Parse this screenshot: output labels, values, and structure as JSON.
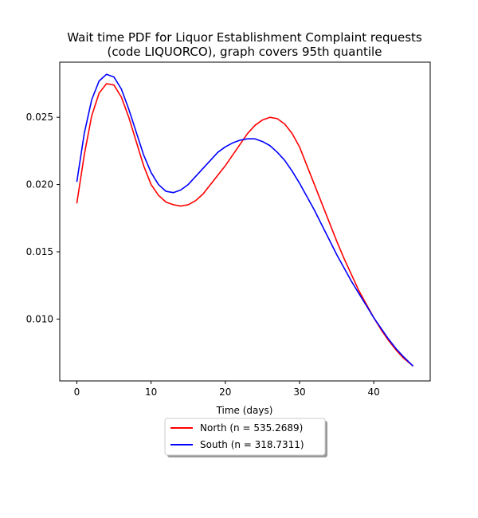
{
  "chart_data": {
    "type": "line",
    "title_lines": [
      "Wait time PDF for Liquor Establishment Complaint  requests",
      "(code LIQUORCO), graph covers 95th quantile"
    ],
    "xlabel": "Time (days)",
    "ylabel": "",
    "xlim": [
      -2.3,
      47.6
    ],
    "ylim": [
      0.0054,
      0.0291
    ],
    "x_ticks": [
      0,
      10,
      20,
      30,
      40
    ],
    "y_ticks": [
      0.01,
      0.015,
      0.02,
      0.025
    ],
    "x_tick_labels": [
      "0",
      "10",
      "20",
      "30",
      "40"
    ],
    "y_tick_labels": [
      "0.010",
      "0.015",
      "0.020",
      "0.025"
    ],
    "grid": false,
    "legend_position": "below-center",
    "series": [
      {
        "name": "North (n = 535.2689)",
        "color": "#ff0000",
        "points": [
          [
            0,
            0.0186
          ],
          [
            1,
            0.0222
          ],
          [
            2,
            0.0251
          ],
          [
            3,
            0.0268
          ],
          [
            4,
            0.0275
          ],
          [
            5,
            0.0274
          ],
          [
            6,
            0.0265
          ],
          [
            7,
            0.025
          ],
          [
            8,
            0.0232
          ],
          [
            9,
            0.0214
          ],
          [
            10,
            0.02
          ],
          [
            11,
            0.0192
          ],
          [
            12,
            0.0187
          ],
          [
            13,
            0.0185
          ],
          [
            14,
            0.0184
          ],
          [
            15,
            0.0185
          ],
          [
            16,
            0.0188
          ],
          [
            17,
            0.0193
          ],
          [
            18,
            0.02
          ],
          [
            19,
            0.0207
          ],
          [
            20,
            0.0214
          ],
          [
            21,
            0.0222
          ],
          [
            22,
            0.023
          ],
          [
            23,
            0.0238
          ],
          [
            24,
            0.0244
          ],
          [
            25,
            0.0248
          ],
          [
            26,
            0.025
          ],
          [
            27,
            0.0249
          ],
          [
            28,
            0.0245
          ],
          [
            29,
            0.0238
          ],
          [
            30,
            0.0228
          ],
          [
            31,
            0.0214
          ],
          [
            32,
            0.02
          ],
          [
            33,
            0.0186
          ],
          [
            34,
            0.0172
          ],
          [
            35,
            0.0158
          ],
          [
            36,
            0.0145
          ],
          [
            37,
            0.0133
          ],
          [
            38,
            0.0121
          ],
          [
            39,
            0.0111
          ],
          [
            40,
            0.0101
          ],
          [
            41,
            0.0092
          ],
          [
            42,
            0.0084
          ],
          [
            43,
            0.0077
          ],
          [
            44,
            0.0071
          ],
          [
            45.3,
            0.0065
          ]
        ]
      },
      {
        "name": "South (n = 318.7311)",
        "color": "#0000ff",
        "points": [
          [
            0,
            0.0202
          ],
          [
            1,
            0.0238
          ],
          [
            2,
            0.0263
          ],
          [
            3,
            0.0277
          ],
          [
            4,
            0.0282
          ],
          [
            5,
            0.028
          ],
          [
            6,
            0.0271
          ],
          [
            7,
            0.0256
          ],
          [
            8,
            0.0239
          ],
          [
            9,
            0.0222
          ],
          [
            10,
            0.0209
          ],
          [
            11,
            0.02
          ],
          [
            12,
            0.0195
          ],
          [
            13,
            0.0194
          ],
          [
            14,
            0.0196
          ],
          [
            15,
            0.02
          ],
          [
            16,
            0.0206
          ],
          [
            17,
            0.0212
          ],
          [
            18,
            0.0218
          ],
          [
            19,
            0.0224
          ],
          [
            20,
            0.0228
          ],
          [
            21,
            0.0231
          ],
          [
            22,
            0.0233
          ],
          [
            23,
            0.0234
          ],
          [
            24,
            0.0234
          ],
          [
            25,
            0.0232
          ],
          [
            26,
            0.0229
          ],
          [
            27,
            0.0224
          ],
          [
            28,
            0.0218
          ],
          [
            29,
            0.021
          ],
          [
            30,
            0.0201
          ],
          [
            31,
            0.0191
          ],
          [
            32,
            0.0181
          ],
          [
            33,
            0.017
          ],
          [
            34,
            0.0159
          ],
          [
            35,
            0.0148
          ],
          [
            36,
            0.0138
          ],
          [
            37,
            0.0128
          ],
          [
            38,
            0.0119
          ],
          [
            39,
            0.011
          ],
          [
            40,
            0.0101
          ],
          [
            41,
            0.0093
          ],
          [
            42,
            0.0085
          ],
          [
            43,
            0.0078
          ],
          [
            44,
            0.0072
          ],
          [
            45.3,
            0.0065
          ]
        ]
      }
    ]
  }
}
